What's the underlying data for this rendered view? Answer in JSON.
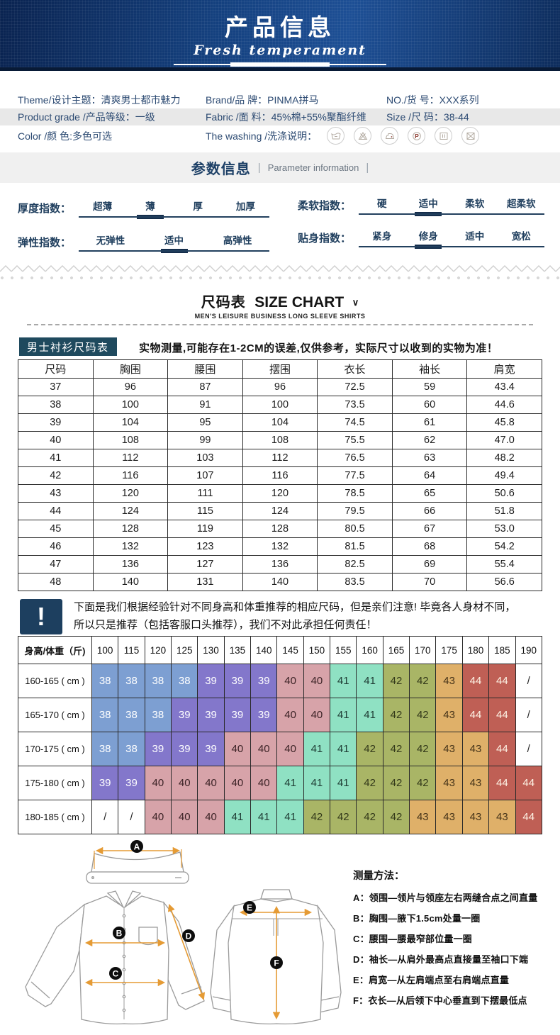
{
  "header": {
    "title": "产品信息",
    "subtitle": "Fresh temperament"
  },
  "product_info": {
    "rows": [
      {
        "cells": [
          "Theme/设计主题：清爽男士都市魅力",
          "Brand/品 牌：PINMA拼马",
          "NO./货 号：XXX系列"
        ]
      },
      {
        "cells": [
          "Product grade /产品等级：一级",
          "Fabric /面 料：45%棉+55%聚酯纤维",
          "Size /尺 码：38-44"
        ]
      },
      {
        "cells": [
          "Color /颜 色:多色可选",
          "The washing /洗涤说明："
        ]
      }
    ],
    "washing_icons": [
      "wash-tub-icon",
      "no-bleach-icon",
      "iron-icon",
      "dry-clean-p-icon",
      "drip-dry-icon",
      "no-tumble-dry-icon"
    ]
  },
  "params": {
    "title": "参数信息",
    "separator": "|",
    "subtitle": "Parameter information",
    "indicators": [
      {
        "label": "厚度指数：",
        "options": [
          "超薄",
          "薄",
          "厚",
          "加厚"
        ],
        "selected": 1
      },
      {
        "label": "柔软指数：",
        "options": [
          "硬",
          "适中",
          "柔软",
          "超柔软"
        ],
        "selected": 1
      },
      {
        "label": "弹性指数：",
        "options": [
          "无弹性",
          "适中",
          "高弹性"
        ],
        "selected": 1
      },
      {
        "label": "贴身指数：",
        "options": [
          "紧身",
          "修身",
          "适中",
          "宽松"
        ],
        "selected": 1
      }
    ]
  },
  "size_chart": {
    "title_zh": "尺码表",
    "title_en": "SIZE CHART",
    "caret": "∨",
    "subtitle": "MEN'S LEISURE BUSINESS LONG SLEEVE SHIRTS",
    "badge": "男士衬衫尺码表",
    "note": "实物测量,可能存在1-2CM的误差,仅供参考，实际尺寸以收到的实物为准！"
  },
  "size_table": {
    "columns": [
      "尺码",
      "胸围",
      "腰围",
      "摆围",
      "衣长",
      "袖长",
      "肩宽"
    ],
    "rows": [
      [
        "37",
        "96",
        "87",
        "96",
        "72.5",
        "59",
        "43.4"
      ],
      [
        "38",
        "100",
        "91",
        "100",
        "73.5",
        "60",
        "44.6"
      ],
      [
        "39",
        "104",
        "95",
        "104",
        "74.5",
        "61",
        "45.8"
      ],
      [
        "40",
        "108",
        "99",
        "108",
        "75.5",
        "62",
        "47.0"
      ],
      [
        "41",
        "112",
        "103",
        "112",
        "76.5",
        "63",
        "48.2"
      ],
      [
        "42",
        "116",
        "107",
        "116",
        "77.5",
        "64",
        "49.4"
      ],
      [
        "43",
        "120",
        "111",
        "120",
        "78.5",
        "65",
        "50.6"
      ],
      [
        "44",
        "124",
        "115",
        "124",
        "79.5",
        "66",
        "51.8"
      ],
      [
        "45",
        "128",
        "119",
        "128",
        "80.5",
        "67",
        "53.0"
      ],
      [
        "46",
        "132",
        "123",
        "132",
        "81.5",
        "68",
        "54.2"
      ],
      [
        "47",
        "136",
        "127",
        "136",
        "82.5",
        "69",
        "55.4"
      ],
      [
        "48",
        "140",
        "131",
        "140",
        "83.5",
        "70",
        "56.6"
      ]
    ]
  },
  "warning": {
    "icon_glyph": "!",
    "lines": [
      "下面是我们根据经验针对不同身高和体重推荐的相应尺码，但是亲们注意! 毕竟各人身材不同，",
      "所以只是推荐（包括客服口头推荐），我们不对此承担任何责任！"
    ]
  },
  "rec_table": {
    "corner": "身高/体重（斤)",
    "weights": [
      "100",
      "115",
      "120",
      "125",
      "130",
      "135",
      "140",
      "145",
      "150",
      "155",
      "160",
      "165",
      "170",
      "175",
      "180",
      "185",
      "190"
    ],
    "rows": [
      {
        "label": "160-165 ( cm )",
        "values": [
          "38",
          "38",
          "38",
          "38",
          "39",
          "39",
          "39",
          "40",
          "40",
          "41",
          "41",
          "42",
          "42",
          "43",
          "44",
          "44",
          "/"
        ]
      },
      {
        "label": "165-170 ( cm )",
        "values": [
          "38",
          "38",
          "38",
          "39",
          "39",
          "39",
          "39",
          "40",
          "40",
          "41",
          "41",
          "42",
          "42",
          "43",
          "44",
          "44",
          "/"
        ]
      },
      {
        "label": "170-175 ( cm )",
        "values": [
          "38",
          "38",
          "39",
          "39",
          "39",
          "40",
          "40",
          "40",
          "41",
          "41",
          "42",
          "42",
          "42",
          "43",
          "43",
          "44",
          "/"
        ]
      },
      {
        "label": "175-180 ( cm )",
        "values": [
          "39",
          "39",
          "40",
          "40",
          "40",
          "40",
          "40",
          "41",
          "41",
          "41",
          "42",
          "42",
          "42",
          "43",
          "43",
          "44",
          "44"
        ]
      },
      {
        "label": "180-185 ( cm )",
        "values": [
          "/",
          "/",
          "40",
          "40",
          "40",
          "41",
          "41",
          "41",
          "42",
          "42",
          "42",
          "42",
          "43",
          "43",
          "43",
          "43",
          "44"
        ]
      }
    ],
    "size_colors": {
      "38": {
        "bg": "#7d9fd2",
        "fg": "#ffffff"
      },
      "39": {
        "bg": "#8377cb",
        "fg": "#ffffff"
      },
      "40": {
        "bg": "#d7a3a9",
        "fg": "#3c2326"
      },
      "41": {
        "bg": "#8fe1c3",
        "fg": "#1e3b33"
      },
      "42": {
        "bg": "#a9b566",
        "fg": "#33391a"
      },
      "43": {
        "bg": "#dfb069",
        "fg": "#47351a"
      },
      "44": {
        "bg": "#bf5f55",
        "fg": "#fdf3e5"
      },
      "/": {
        "bg": "#ffffff",
        "fg": "#222222"
      }
    }
  },
  "measure": {
    "title": "测量方法：",
    "items": [
      {
        "key": "A",
        "text": "领围—领片与领座左右两缝合点之间直量"
      },
      {
        "key": "B",
        "text": "胸围—腋下1.5cm处量一圈"
      },
      {
        "key": "C",
        "text": "腰围—腰最窄部位量一圈"
      },
      {
        "key": "D",
        "text": "袖长—从肩外最高点直接量至袖口下端"
      },
      {
        "key": "E",
        "text": "肩宽—从左肩端点至右肩端点直量"
      },
      {
        "key": "F",
        "text": "衣长—从后领下中心垂直到下摆最低点"
      }
    ]
  },
  "colors": {
    "banner_navy": "#14407e",
    "accent_navy": "#1c3f66",
    "badge_bg": "#1f4a5e",
    "row_gray": "#e8e8e8",
    "band_gray": "#f0f0f0",
    "arrow_orange": "#e59b35"
  }
}
